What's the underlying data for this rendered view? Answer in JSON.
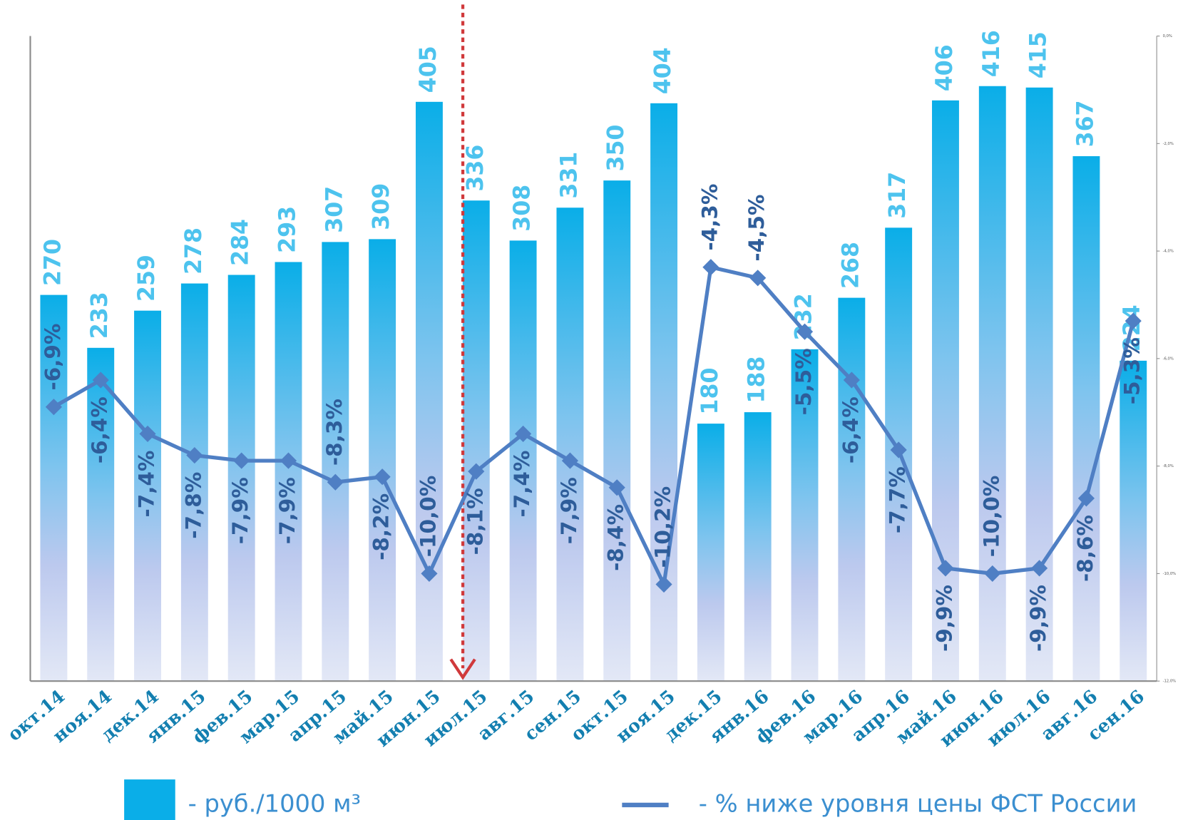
{
  "chart_data": {
    "type": "bar",
    "categories": [
      "окт.14",
      "ноя.14",
      "дек.14",
      "янв.15",
      "фев.15",
      "мар.15",
      "апр.15",
      "май.15",
      "июн.15",
      "июл.15",
      "авг.15",
      "сен.15",
      "окт.15",
      "ноя.15",
      "дек.15",
      "янв.16",
      "фев.16",
      "мар.16",
      "апр.16",
      "май.16",
      "июн.16",
      "июл.16",
      "авг.16",
      "сен.16"
    ],
    "series": [
      {
        "name": "- руб./1000 м³",
        "color": "#0aaee8",
        "values": [
          270,
          233,
          259,
          278,
          284,
          293,
          307,
          309,
          405,
          336,
          308,
          331,
          350,
          404,
          180,
          188,
          232,
          268,
          317,
          406,
          416,
          415,
          367,
          224
        ]
      },
      {
        "name": "- % ниже уровня цены ФСТ России",
        "type": "line",
        "axis": "y2",
        "color": "#4f7fc4",
        "values": [
          -6.9,
          -6.4,
          -7.4,
          -7.8,
          -7.9,
          -7.9,
          -8.3,
          -8.2,
          -10.0,
          -8.1,
          -7.4,
          -7.9,
          -8.4,
          -10.2,
          -4.3,
          -4.5,
          -5.5,
          -6.4,
          -7.7,
          -9.9,
          -10.0,
          -9.9,
          -8.6,
          -5.3
        ],
        "value_labels": [
          "-6,9%",
          "-6,4%",
          "-7,4%",
          "-7,8%",
          "-7,9%",
          "-7,9%",
          "-8,3%",
          "-8,2%",
          "-10,0%",
          "-8,1%",
          "-7,4%",
          "-7,9%",
          "-8,4%",
          "-10,2%",
          "-4,3%",
          "-4,5%",
          "-5,5%",
          "-6,4%",
          "-7,7%",
          "-9,9%",
          "-10,0%",
          "-9,9%",
          "-8,6%",
          "-5,3%"
        ]
      }
    ],
    "ylim": [
      0,
      451
    ],
    "y2lim": [
      -12,
      0
    ],
    "y2ticks": [
      {
        "value": 0,
        "label": "0,0%"
      },
      {
        "value": -2,
        "label": "-2,0%"
      },
      {
        "value": -4,
        "label": "-4,0%"
      },
      {
        "value": -6,
        "label": "-6,0%"
      },
      {
        "value": -8,
        "label": "-8,0%"
      },
      {
        "value": -10,
        "label": "-10,0%"
      },
      {
        "value": -12,
        "label": "-12,0%"
      }
    ]
  }
}
